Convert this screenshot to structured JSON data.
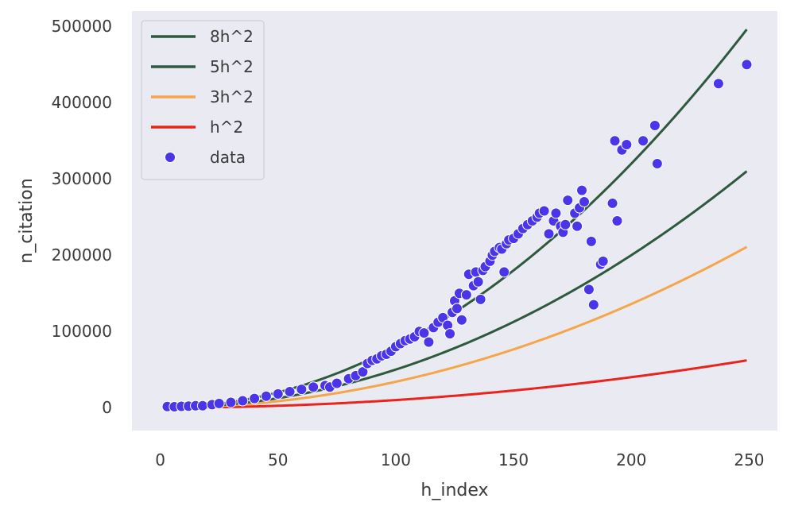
{
  "chart_data": {
    "type": "scatter",
    "title": "",
    "xlabel": "h_index",
    "ylabel": "n_citation",
    "xlim": [
      -12,
      262
    ],
    "ylim": [
      -30000,
      520000
    ],
    "xticks": [
      0,
      50,
      100,
      150,
      200,
      250
    ],
    "yticks": [
      0,
      100000,
      200000,
      300000,
      400000,
      500000
    ],
    "grid": false,
    "legend_position": "top-left",
    "background": "#eaeaf2",
    "curves": [
      {
        "name": "8h^2",
        "coefficient": 8,
        "color": "#2d5a3d",
        "x_range": [
          2,
          249
        ]
      },
      {
        "name": "5h^2",
        "coefficient": 5,
        "color": "#2d5a3d",
        "x_range": [
          2,
          249
        ]
      },
      {
        "name": "3h^2",
        "coefficient": 3.4,
        "color": "#f5a54a",
        "x_range": [
          2,
          249
        ]
      },
      {
        "name": "h^2",
        "coefficient": 1,
        "color": "#e8241c",
        "x_range": [
          2,
          249
        ]
      }
    ],
    "scatter": {
      "name": "data",
      "color": "#4a35e8",
      "points": [
        [
          3,
          1500
        ],
        [
          6,
          1200
        ],
        [
          9,
          1800
        ],
        [
          12,
          2000
        ],
        [
          15,
          2500
        ],
        [
          18,
          2600
        ],
        [
          22,
          4000
        ],
        [
          25,
          5500
        ],
        [
          30,
          7000
        ],
        [
          35,
          9000
        ],
        [
          40,
          12000
        ],
        [
          45,
          15000
        ],
        [
          50,
          18000
        ],
        [
          55,
          21000
        ],
        [
          60,
          24000
        ],
        [
          65,
          27000
        ],
        [
          70,
          29000
        ],
        [
          72,
          27000
        ],
        [
          75,
          32000
        ],
        [
          80,
          38000
        ],
        [
          83,
          42000
        ],
        [
          86,
          47000
        ],
        [
          88,
          58000
        ],
        [
          90,
          62000
        ],
        [
          92,
          64000
        ],
        [
          94,
          68000
        ],
        [
          96,
          70000
        ],
        [
          98,
          74000
        ],
        [
          100,
          80000
        ],
        [
          102,
          84000
        ],
        [
          104,
          88000
        ],
        [
          106,
          90000
        ],
        [
          108,
          93000
        ],
        [
          110,
          100000
        ],
        [
          112,
          98000
        ],
        [
          114,
          86000
        ],
        [
          116,
          105000
        ],
        [
          118,
          112000
        ],
        [
          120,
          118000
        ],
        [
          122,
          108000
        ],
        [
          123,
          97000
        ],
        [
          124,
          125000
        ],
        [
          125,
          140000
        ],
        [
          126,
          130000
        ],
        [
          127,
          150000
        ],
        [
          128,
          115000
        ],
        [
          130,
          148000
        ],
        [
          131,
          175000
        ],
        [
          133,
          160000
        ],
        [
          134,
          178000
        ],
        [
          135,
          165000
        ],
        [
          136,
          142000
        ],
        [
          137,
          180000
        ],
        [
          138,
          185000
        ],
        [
          140,
          192000
        ],
        [
          141,
          200000
        ],
        [
          142,
          205000
        ],
        [
          144,
          210000
        ],
        [
          145,
          208000
        ],
        [
          146,
          178000
        ],
        [
          147,
          215000
        ],
        [
          148,
          220000
        ],
        [
          150,
          222000
        ],
        [
          152,
          228000
        ],
        [
          154,
          235000
        ],
        [
          156,
          240000
        ],
        [
          158,
          245000
        ],
        [
          160,
          250000
        ],
        [
          161,
          255000
        ],
        [
          163,
          258000
        ],
        [
          165,
          228000
        ],
        [
          167,
          245000
        ],
        [
          168,
          255000
        ],
        [
          170,
          238000
        ],
        [
          171,
          230000
        ],
        [
          172,
          240000
        ],
        [
          173,
          272000
        ],
        [
          176,
          255000
        ],
        [
          177,
          238000
        ],
        [
          178,
          262000
        ],
        [
          179,
          285000
        ],
        [
          180,
          270000
        ],
        [
          182,
          155000
        ],
        [
          183,
          218000
        ],
        [
          184,
          135000
        ],
        [
          187,
          188000
        ],
        [
          188,
          192000
        ],
        [
          192,
          268000
        ],
        [
          193,
          350000
        ],
        [
          194,
          245000
        ],
        [
          196,
          338000
        ],
        [
          198,
          345000
        ],
        [
          205,
          350000
        ],
        [
          210,
          370000
        ],
        [
          211,
          320000
        ],
        [
          237,
          425000
        ],
        [
          249,
          450000
        ]
      ]
    }
  }
}
